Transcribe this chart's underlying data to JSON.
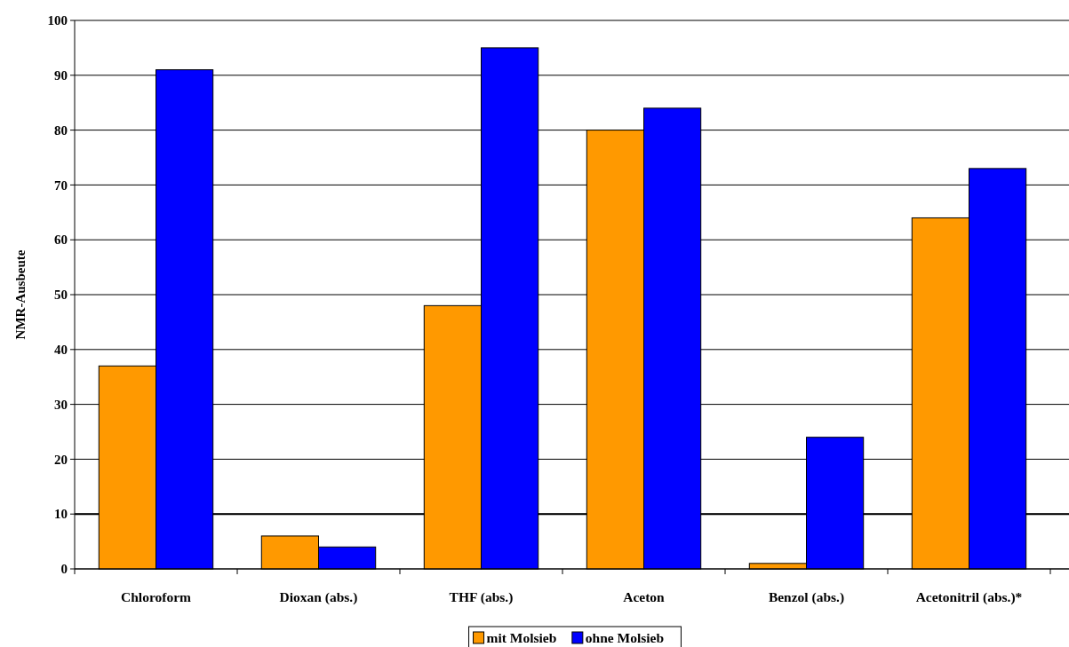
{
  "chart_data": {
    "type": "bar",
    "ylabel": "NMR-Ausbeute",
    "categories": [
      "Chloroform",
      "Dioxan (abs.)",
      "THF (abs.)",
      "Aceton",
      "Benzol (abs.)",
      "Acetonitril (abs.)*"
    ],
    "series": [
      {
        "name": "mit Molsieb",
        "color": "#ff9900",
        "values": [
          37,
          6,
          48,
          80,
          1,
          64
        ]
      },
      {
        "name": "ohne Molsieb",
        "color": "#0000ff",
        "values": [
          91,
          4,
          95,
          84,
          24,
          73
        ]
      }
    ],
    "ylim": [
      0,
      100
    ],
    "yticks": [
      0,
      10,
      20,
      30,
      40,
      50,
      60,
      70,
      80,
      90,
      100
    ],
    "grid": "y",
    "legend": "bottom",
    "ref_lines": [
      {
        "axis": "y",
        "value": 10,
        "color": "#000000"
      }
    ]
  }
}
